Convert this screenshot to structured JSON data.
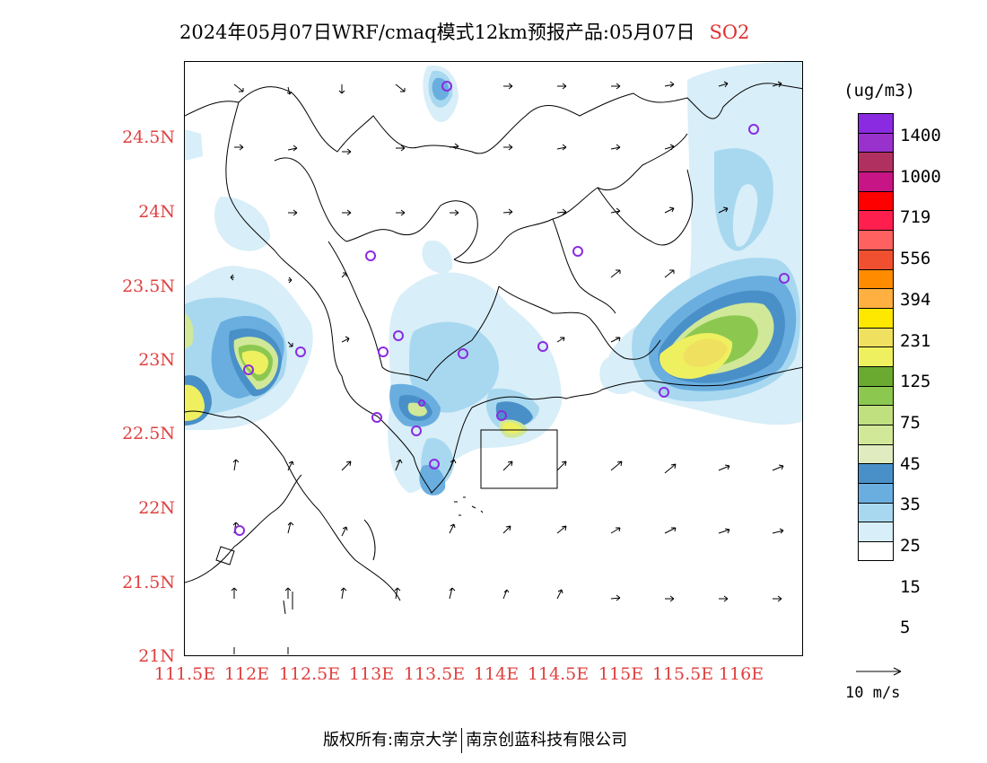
{
  "title": {
    "main": "2024年05月07日WRF/cmaq模式12km预报产品:05月07日",
    "species": "SO2"
  },
  "axes": {
    "y_labels": [
      "24.5N",
      "24N",
      "23.5N",
      "23N",
      "22.5N",
      "22N",
      "21.5N",
      "21N"
    ],
    "x_labels": [
      "111.5E",
      "112E",
      "112.5E",
      "113E",
      "113.5E",
      "114E",
      "114.5E",
      "115E",
      "115.5E",
      "116E"
    ]
  },
  "legend": {
    "unit": "(ug/m3)",
    "labels": [
      "1400",
      "1000",
      "719",
      "556",
      "394",
      "231",
      "125",
      "75",
      "45",
      "35",
      "25",
      "15",
      "5"
    ],
    "colors": [
      "#8a2be2",
      "#9932cc",
      "#b03060",
      "#c71585",
      "#ff0000",
      "#ff1f4f",
      "#ff6060",
      "#f05030",
      "#ff8c00",
      "#ffb040",
      "#ffe800",
      "#f0e060",
      "#eef060",
      "#6aaa30",
      "#8cc850",
      "#c0e080",
      "#d0e898",
      "#e0ecc0",
      "#4a90c8",
      "#6aaee0",
      "#a8d8f0",
      "#d8eef8",
      "#ffffff"
    ]
  },
  "wind_reference": {
    "label": "10 m/s"
  },
  "footer": {
    "left": "版权所有:南京大学",
    "right": "南京创蓝科技有限公司"
  },
  "stations_visible": 18
}
